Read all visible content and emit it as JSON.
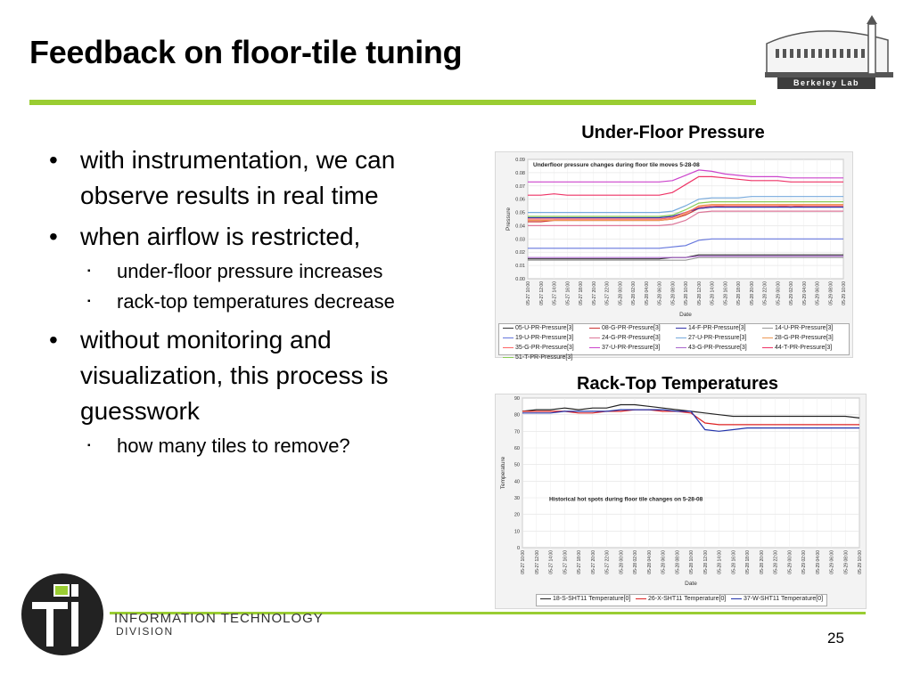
{
  "slide": {
    "title": "Feedback on floor-tile tuning",
    "page_number": "25"
  },
  "logos": {
    "berkeley_lab": "Berkeley Lab",
    "it_line1": "INFORMATION TECHNOLOGY",
    "it_line2": "DIVISION"
  },
  "bullets": [
    {
      "text": "with instrumentation, we can observe results in real time"
    },
    {
      "text": "when airflow is restricted,",
      "sub": [
        "under-floor pressure increases",
        "rack-top temperatures decrease"
      ]
    },
    {
      "text": "without monitoring and visualization, this process is guesswork",
      "sub": [
        "how many tiles to remove?"
      ]
    }
  ],
  "chart_data": [
    {
      "type": "line",
      "caption": "Under-Floor Pressure",
      "title": "Underfloor pressure changes during floor tile moves 5-28-08",
      "xlabel": "Date",
      "ylabel": "Pressure",
      "ylim": [
        0,
        0.09
      ],
      "yticks": [
        "0.00",
        "0.01",
        "0.02",
        "0.03",
        "0.04",
        "0.05",
        "0.06",
        "0.07",
        "0.08",
        "0.09"
      ],
      "x": [
        "05-27 10:00",
        "05-27 12:00",
        "05-27 14:00",
        "05-27 16:00",
        "05-27 18:00",
        "05-27 20:00",
        "05-27 22:00",
        "05-28 00:00",
        "05-28 02:00",
        "05-28 04:00",
        "05-28 06:00",
        "05-28 08:00",
        "05-28 10:00",
        "05-28 12:00",
        "05-28 14:00",
        "05-28 16:00",
        "05-28 18:00",
        "05-28 20:00",
        "05-28 22:00",
        "05-29 00:00",
        "05-29 02:00",
        "05-29 04:00",
        "05-29 06:00",
        "05-29 08:00",
        "05-29 10:00"
      ],
      "grid": true,
      "legend_position": "bottom",
      "series": [
        {
          "name": "05-U-PR-Pressure[3]",
          "color": "#333333",
          "values": [
            0.015,
            0.015,
            0.015,
            0.015,
            0.015,
            0.015,
            0.015,
            0.015,
            0.015,
            0.015,
            0.015,
            0.016,
            0.016,
            0.018,
            0.018,
            0.018,
            0.018,
            0.018,
            0.018,
            0.018,
            0.018,
            0.018,
            0.018,
            0.018,
            0.018
          ]
        },
        {
          "name": "08-G-PR-Pressure[3]",
          "color": "#cc3333",
          "values": [
            0.043,
            0.043,
            0.044,
            0.044,
            0.044,
            0.044,
            0.044,
            0.044,
            0.044,
            0.044,
            0.044,
            0.045,
            0.048,
            0.053,
            0.054,
            0.055,
            0.055,
            0.055,
            0.055,
            0.055,
            0.054,
            0.055,
            0.055,
            0.055,
            0.055
          ]
        },
        {
          "name": "14-F-PR-Pressure[3]",
          "color": "#3333aa",
          "values": [
            0.046,
            0.046,
            0.046,
            0.046,
            0.046,
            0.046,
            0.046,
            0.046,
            0.046,
            0.046,
            0.046,
            0.047,
            0.05,
            0.053,
            0.054,
            0.054,
            0.054,
            0.054,
            0.054,
            0.054,
            0.054,
            0.054,
            0.054,
            0.054,
            0.054
          ]
        },
        {
          "name": "14-U-PR-Pressure[3]",
          "color": "#999999",
          "values": [
            0.014,
            0.014,
            0.014,
            0.014,
            0.014,
            0.014,
            0.014,
            0.014,
            0.014,
            0.014,
            0.014,
            0.014,
            0.014,
            0.016,
            0.016,
            0.016,
            0.016,
            0.016,
            0.016,
            0.016,
            0.016,
            0.016,
            0.016,
            0.016,
            0.016
          ]
        },
        {
          "name": "19-U-PR-Pressure[3]",
          "color": "#6677dd",
          "values": [
            0.023,
            0.023,
            0.023,
            0.023,
            0.023,
            0.023,
            0.023,
            0.023,
            0.023,
            0.023,
            0.023,
            0.024,
            0.025,
            0.029,
            0.03,
            0.03,
            0.03,
            0.03,
            0.03,
            0.03,
            0.03,
            0.03,
            0.03,
            0.03,
            0.03
          ]
        },
        {
          "name": "24-G-PR-Pressure[3]",
          "color": "#dd7799",
          "values": [
            0.04,
            0.04,
            0.04,
            0.04,
            0.04,
            0.04,
            0.04,
            0.04,
            0.04,
            0.04,
            0.04,
            0.041,
            0.044,
            0.05,
            0.051,
            0.051,
            0.051,
            0.051,
            0.051,
            0.051,
            0.051,
            0.051,
            0.051,
            0.051,
            0.051
          ]
        },
        {
          "name": "27-U-PR-Pressure[3]",
          "color": "#77aadd",
          "values": [
            0.05,
            0.05,
            0.05,
            0.05,
            0.05,
            0.05,
            0.05,
            0.05,
            0.05,
            0.05,
            0.05,
            0.051,
            0.055,
            0.06,
            0.061,
            0.061,
            0.061,
            0.062,
            0.062,
            0.062,
            0.062,
            0.062,
            0.062,
            0.062,
            0.062
          ]
        },
        {
          "name": "28-G-PR-Pressure[3]",
          "color": "#ee9955",
          "values": [
            0.044,
            0.044,
            0.044,
            0.044,
            0.044,
            0.044,
            0.044,
            0.044,
            0.044,
            0.044,
            0.044,
            0.045,
            0.049,
            0.055,
            0.056,
            0.056,
            0.056,
            0.056,
            0.056,
            0.056,
            0.056,
            0.056,
            0.056,
            0.056,
            0.056
          ]
        },
        {
          "name": "35-G-PR-Pressure[3]",
          "color": "#ff6666",
          "values": [
            0.045,
            0.045,
            0.045,
            0.045,
            0.045,
            0.045,
            0.045,
            0.045,
            0.045,
            0.045,
            0.045,
            0.046,
            0.05,
            0.054,
            0.055,
            0.055,
            0.055,
            0.055,
            0.055,
            0.055,
            0.055,
            0.055,
            0.055,
            0.055,
            0.055
          ]
        },
        {
          "name": "37-U-PR-Pressure[3]",
          "color": "#cc44cc",
          "values": [
            0.073,
            0.073,
            0.073,
            0.073,
            0.073,
            0.073,
            0.073,
            0.073,
            0.073,
            0.073,
            0.073,
            0.074,
            0.078,
            0.082,
            0.081,
            0.079,
            0.078,
            0.077,
            0.077,
            0.077,
            0.076,
            0.076,
            0.076,
            0.076,
            0.076
          ]
        },
        {
          "name": "43-G-PR-Pressure[3]",
          "color": "#aa66cc",
          "values": [
            0.016,
            0.016,
            0.016,
            0.016,
            0.016,
            0.016,
            0.016,
            0.016,
            0.016,
            0.016,
            0.016,
            0.016,
            0.016,
            0.017,
            0.017,
            0.017,
            0.017,
            0.017,
            0.017,
            0.017,
            0.017,
            0.017,
            0.017,
            0.017,
            0.017
          ]
        },
        {
          "name": "44-T-PR-Pressure[3]",
          "color": "#ee3366",
          "values": [
            0.063,
            0.063,
            0.064,
            0.063,
            0.063,
            0.063,
            0.063,
            0.063,
            0.063,
            0.063,
            0.063,
            0.065,
            0.071,
            0.077,
            0.077,
            0.076,
            0.075,
            0.074,
            0.074,
            0.074,
            0.073,
            0.073,
            0.073,
            0.073,
            0.073
          ]
        },
        {
          "name": "51-T-PR-Pressure[3]",
          "color": "#88cc55",
          "values": [
            0.047,
            0.047,
            0.047,
            0.047,
            0.047,
            0.047,
            0.047,
            0.047,
            0.047,
            0.047,
            0.047,
            0.048,
            0.052,
            0.057,
            0.058,
            0.058,
            0.058,
            0.058,
            0.058,
            0.058,
            0.058,
            0.058,
            0.058,
            0.058,
            0.058
          ]
        }
      ]
    },
    {
      "type": "line",
      "caption": "Rack-Top Temperatures",
      "title": "Historical hot spots during floor tile changes on 5-28-08",
      "xlabel": "Date",
      "ylabel": "Temperature",
      "ylim": [
        0,
        90
      ],
      "yticks": [
        "0",
        "10",
        "20",
        "30",
        "40",
        "50",
        "60",
        "70",
        "80",
        "90"
      ],
      "x": [
        "05-27 10:00",
        "05-27 12:00",
        "05-27 14:00",
        "05-27 16:00",
        "05-27 18:00",
        "05-27 20:00",
        "05-27 22:00",
        "05-28 00:00",
        "05-28 02:00",
        "05-28 04:00",
        "05-28 06:00",
        "05-28 08:00",
        "05-28 10:00",
        "05-28 12:00",
        "05-28 14:00",
        "05-28 16:00",
        "05-28 18:00",
        "05-28 20:00",
        "05-28 22:00",
        "05-29 00:00",
        "05-29 02:00",
        "05-29 04:00",
        "05-29 06:00",
        "05-29 08:00",
        "05-29 10:00"
      ],
      "grid": true,
      "legend_position": "bottom",
      "series": [
        {
          "name": "18-S-SHT11 Temperature[0]",
          "color": "#222222",
          "values": [
            82,
            83,
            83,
            84,
            83,
            84,
            84,
            86,
            86,
            85,
            84,
            83,
            82,
            81,
            80,
            79,
            79,
            79,
            79,
            79,
            79,
            79,
            79,
            79,
            78
          ]
        },
        {
          "name": "26-X-SHT11 Temperature[0]",
          "color": "#dd2222",
          "values": [
            82,
            82,
            82,
            82,
            81,
            81,
            82,
            82,
            83,
            83,
            82,
            82,
            81,
            75,
            74,
            74,
            74,
            74,
            74,
            74,
            74,
            74,
            74,
            74,
            74
          ]
        },
        {
          "name": "37-W-SHT11 Temperature[0]",
          "color": "#2233aa",
          "values": [
            81,
            81,
            81,
            82,
            82,
            82,
            82,
            83,
            83,
            83,
            83,
            82,
            82,
            71,
            70,
            71,
            72,
            72,
            72,
            72,
            72,
            72,
            72,
            72,
            72
          ]
        }
      ]
    }
  ]
}
